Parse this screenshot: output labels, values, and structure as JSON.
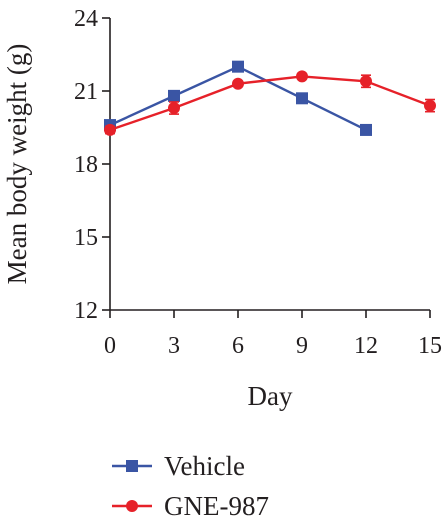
{
  "chart_data": {
    "type": "line",
    "title": "",
    "xlabel": "Day",
    "ylabel": "Mean body weight (g)",
    "xlim": [
      0,
      15
    ],
    "ylim": [
      12,
      24
    ],
    "xticks": [
      0,
      3,
      6,
      9,
      12,
      15
    ],
    "yticks": [
      12,
      15,
      18,
      21,
      24
    ],
    "grid": false,
    "legend_position": "bottom",
    "series": [
      {
        "name": "Vehicle",
        "color": "#3a55a4",
        "marker": "square",
        "x": [
          0,
          3,
          6,
          9,
          12
        ],
        "values": [
          19.6,
          20.8,
          22.0,
          20.7,
          19.4
        ],
        "error": [
          0.1,
          0.15,
          0.15,
          0.1,
          0.1
        ]
      },
      {
        "name": "GNE-987",
        "color": "#e62129",
        "marker": "circle",
        "x": [
          0,
          3,
          6,
          9,
          12,
          15
        ],
        "values": [
          19.4,
          20.3,
          21.3,
          21.6,
          21.4,
          20.4
        ],
        "error": [
          0.15,
          0.25,
          0.1,
          0.1,
          0.25,
          0.25
        ]
      }
    ]
  }
}
